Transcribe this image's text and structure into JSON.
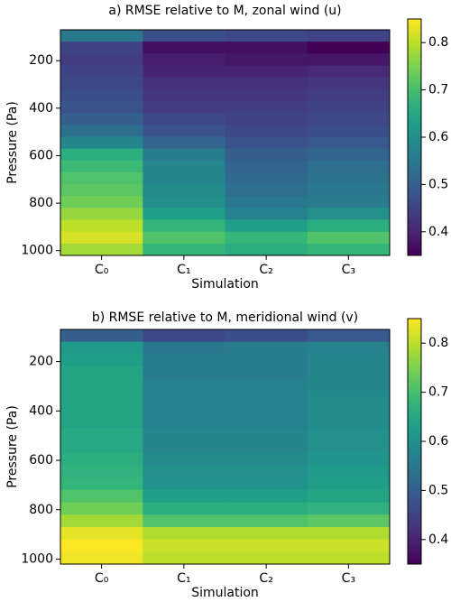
{
  "chart_data": [
    {
      "type": "heatmap",
      "title": "a) RMSE relative to M, zonal wind (u)",
      "xlabel": "Simulation",
      "ylabel": "Pressure (Pa)",
      "categories": [
        "C₀",
        "C₁",
        "C₂",
        "C₃"
      ],
      "y": [
        95,
        145,
        195,
        245,
        295,
        345,
        395,
        445,
        495,
        545,
        595,
        645,
        695,
        745,
        795,
        845,
        895,
        945,
        995
      ],
      "values": [
        [
          0.55,
          0.47,
          0.46,
          0.45
        ],
        [
          0.45,
          0.37,
          0.37,
          0.35
        ],
        [
          0.44,
          0.39,
          0.38,
          0.38
        ],
        [
          0.45,
          0.4,
          0.4,
          0.41
        ],
        [
          0.46,
          0.42,
          0.42,
          0.43
        ],
        [
          0.47,
          0.43,
          0.43,
          0.44
        ],
        [
          0.48,
          0.44,
          0.44,
          0.45
        ],
        [
          0.5,
          0.46,
          0.45,
          0.46
        ],
        [
          0.53,
          0.48,
          0.46,
          0.47
        ],
        [
          0.58,
          0.51,
          0.48,
          0.49
        ],
        [
          0.66,
          0.56,
          0.5,
          0.51
        ],
        [
          0.69,
          0.58,
          0.51,
          0.53
        ],
        [
          0.71,
          0.58,
          0.52,
          0.54
        ],
        [
          0.72,
          0.59,
          0.53,
          0.55
        ],
        [
          0.74,
          0.6,
          0.55,
          0.56
        ],
        [
          0.77,
          0.63,
          0.57,
          0.6
        ],
        [
          0.8,
          0.68,
          0.63,
          0.66
        ],
        [
          0.82,
          0.71,
          0.68,
          0.71
        ],
        [
          0.78,
          0.68,
          0.66,
          0.68
        ]
      ],
      "ylim": [
        70,
        1020
      ],
      "yticks": [
        200,
        400,
        600,
        800,
        1000
      ],
      "colormap": "viridis",
      "clim": [
        0.35,
        0.85
      ],
      "cticks": [
        0.4,
        0.5,
        0.6,
        0.7,
        0.8
      ]
    },
    {
      "type": "heatmap",
      "title": "b) RMSE relative to M, meridional wind (v)",
      "xlabel": "Simulation",
      "ylabel": "Pressure (Pa)",
      "categories": [
        "C₀",
        "C₁",
        "C₂",
        "C₃"
      ],
      "y": [
        95,
        145,
        195,
        245,
        295,
        345,
        395,
        445,
        495,
        545,
        595,
        645,
        695,
        745,
        795,
        845,
        895,
        945,
        995
      ],
      "values": [
        [
          0.5,
          0.46,
          0.47,
          0.49
        ],
        [
          0.62,
          0.55,
          0.56,
          0.57
        ],
        [
          0.63,
          0.56,
          0.56,
          0.58
        ],
        [
          0.64,
          0.56,
          0.56,
          0.58
        ],
        [
          0.64,
          0.57,
          0.57,
          0.58
        ],
        [
          0.64,
          0.57,
          0.57,
          0.59
        ],
        [
          0.64,
          0.57,
          0.57,
          0.59
        ],
        [
          0.64,
          0.57,
          0.57,
          0.59
        ],
        [
          0.65,
          0.58,
          0.58,
          0.6
        ],
        [
          0.65,
          0.58,
          0.58,
          0.6
        ],
        [
          0.66,
          0.59,
          0.59,
          0.61
        ],
        [
          0.67,
          0.6,
          0.6,
          0.62
        ],
        [
          0.68,
          0.61,
          0.61,
          0.63
        ],
        [
          0.71,
          0.63,
          0.63,
          0.64
        ],
        [
          0.74,
          0.66,
          0.66,
          0.67
        ],
        [
          0.78,
          0.71,
          0.71,
          0.72
        ],
        [
          0.83,
          0.79,
          0.79,
          0.79
        ],
        [
          0.85,
          0.81,
          0.81,
          0.81
        ],
        [
          0.84,
          0.8,
          0.8,
          0.8
        ]
      ],
      "ylim": [
        70,
        1020
      ],
      "yticks": [
        200,
        400,
        600,
        800,
        1000
      ],
      "colormap": "viridis",
      "clim": [
        0.35,
        0.85
      ],
      "cticks": [
        0.4,
        0.5,
        0.6,
        0.7,
        0.8
      ]
    }
  ]
}
